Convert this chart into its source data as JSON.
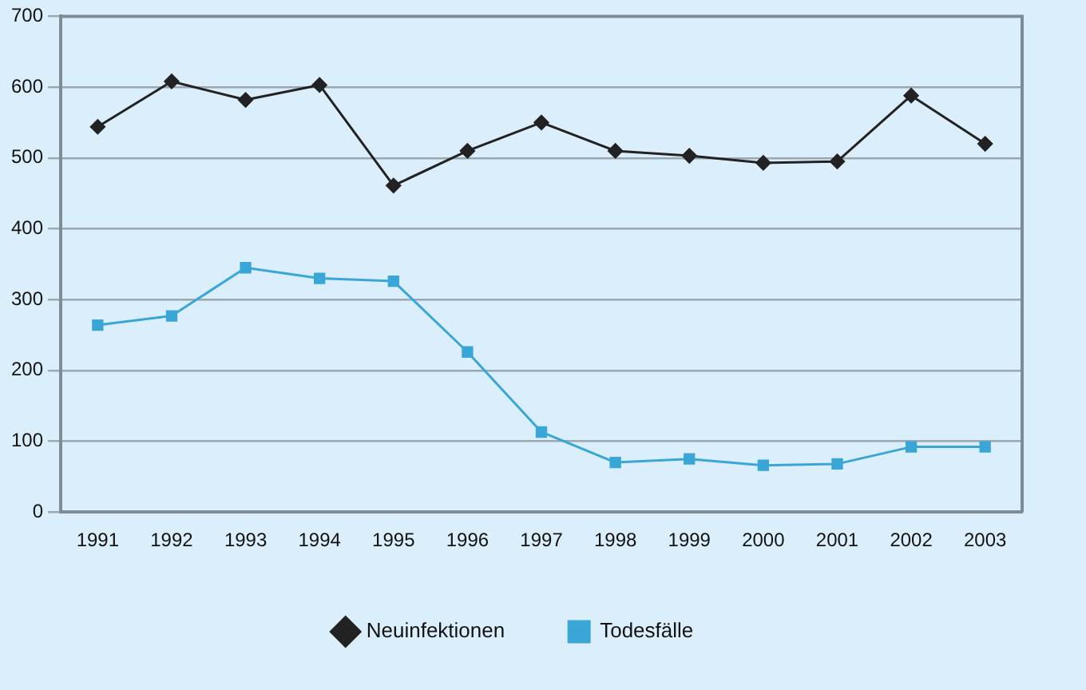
{
  "chart_data": {
    "type": "line",
    "categories": [
      "1991",
      "1992",
      "1993",
      "1994",
      "1995",
      "1996",
      "1997",
      "1998",
      "1999",
      "2000",
      "2001",
      "2002",
      "2003"
    ],
    "series": [
      {
        "name": "Neuinfektionen",
        "color": "#222222",
        "marker": "diamond",
        "values": [
          544,
          608,
          582,
          603,
          461,
          510,
          550,
          510,
          503,
          493,
          495,
          588,
          520
        ]
      },
      {
        "name": "Todesfälle",
        "color": "#3aa6d8",
        "marker": "square",
        "values": [
          264,
          277,
          345,
          330,
          326,
          226,
          113,
          70,
          75,
          66,
          68,
          92,
          92
        ]
      }
    ],
    "ylim": [
      0,
      700
    ],
    "yticks": [
      0,
      100,
      200,
      300,
      400,
      500,
      600,
      700
    ],
    "grid": "y",
    "legend": "bottom",
    "line_style": "solid"
  }
}
